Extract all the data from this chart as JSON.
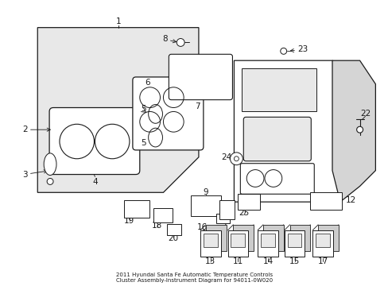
{
  "bg_color": "#ffffff",
  "line_color": "#1a1a1a",
  "gray_fill": "#e8e8e8",
  "white_fill": "#ffffff",
  "title": "2011 Hyundai Santa Fe Automatic Temperature Controls\nCluster Assembly-Instrument Diagram for 94011-0W020",
  "title_fontsize": 5.0,
  "label_fontsize": 7.5,
  "figsize": [
    4.89,
    3.6
  ],
  "dpi": 100
}
